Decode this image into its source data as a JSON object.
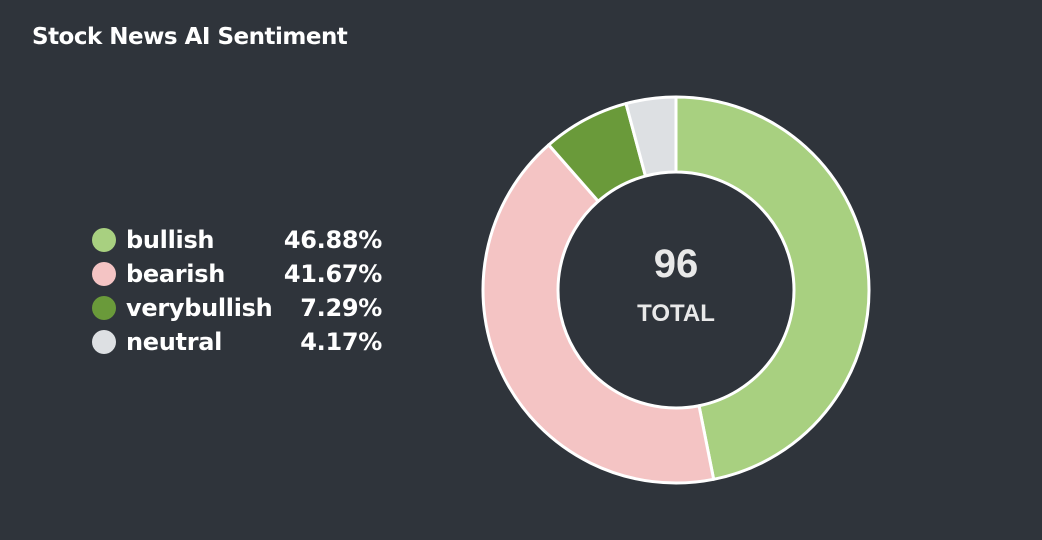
{
  "card": {
    "title": "Stock News AI Sentiment"
  },
  "chart_data": {
    "type": "pie",
    "donut": true,
    "title": "Stock News AI Sentiment",
    "categories": [
      "bullish",
      "bearish",
      "verybullish",
      "neutral"
    ],
    "values": [
      46.88,
      41.67,
      7.29,
      4.17
    ],
    "value_labels": [
      "46.88%",
      "41.67%",
      "7.29%",
      "4.17%"
    ],
    "colors": [
      "#a8d080",
      "#f4c4c4",
      "#6a9a3a",
      "#dde0e3"
    ],
    "center_value": "96",
    "center_label": "TOTAL",
    "legend_position": "left"
  }
}
